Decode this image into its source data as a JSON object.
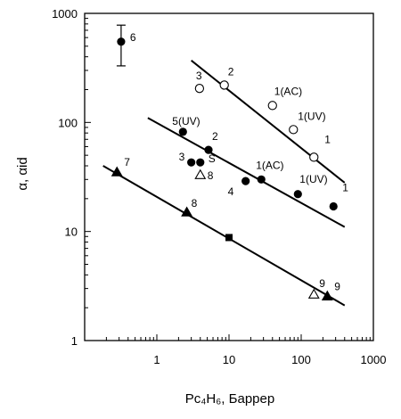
{
  "chart_data": {
    "type": "scatter",
    "title": "",
    "xlabel": "Pc₄H₆, Баррер",
    "ylabel": "α, αid",
    "xscale": "log",
    "yscale": "log",
    "xlim": [
      0.1,
      1000
    ],
    "ylim": [
      1,
      1000
    ],
    "xticks": [
      "1",
      "10",
      "100",
      "1000"
    ],
    "yticks": [
      "1",
      "10",
      "100",
      "1000"
    ],
    "grid": false,
    "legend": "none",
    "series": [
      {
        "marker": "filled-circle",
        "points": [
          {
            "x": 0.32,
            "y": 550,
            "label": "6",
            "yerr": [
              330,
              780
            ]
          },
          {
            "x": 2.3,
            "y": 82,
            "label": "5(UV)"
          },
          {
            "x": 5.2,
            "y": 56,
            "label": "2"
          },
          {
            "x": 3.0,
            "y": 43,
            "label": "3"
          },
          {
            "x": 4.0,
            "y": 43,
            "label": "S"
          },
          {
            "x": 17,
            "y": 29,
            "label": "4"
          },
          {
            "x": 28,
            "y": 30,
            "label": "1(AC)"
          },
          {
            "x": 90,
            "y": 22,
            "label": "1(UV)"
          },
          {
            "x": 280,
            "y": 17,
            "label": "1"
          }
        ]
      },
      {
        "marker": "open-circle",
        "points": [
          {
            "x": 3.9,
            "y": 205,
            "label": "3"
          },
          {
            "x": 8.6,
            "y": 220,
            "label": "2"
          },
          {
            "x": 40,
            "y": 143,
            "label": "1(AC)"
          },
          {
            "x": 78,
            "y": 86,
            "label": "1(UV)"
          },
          {
            "x": 150,
            "y": 48,
            "label": "1"
          }
        ]
      },
      {
        "marker": "filled-triangle",
        "points": [
          {
            "x": 0.28,
            "y": 35,
            "label": "7"
          },
          {
            "x": 2.6,
            "y": 15,
            "label": "8"
          },
          {
            "x": 230,
            "y": 2.55,
            "label": "9"
          }
        ]
      },
      {
        "marker": "open-triangle",
        "points": [
          {
            "x": 4.0,
            "y": 33,
            "label": "8"
          },
          {
            "x": 150,
            "y": 2.65,
            "label": "9"
          }
        ]
      },
      {
        "marker": "filled-square",
        "points": [
          {
            "x": 10,
            "y": 8.8
          }
        ]
      }
    ],
    "fit_lines": [
      {
        "from": [
          3.0,
          370
        ],
        "to": [
          400,
          28
        ]
      },
      {
        "from": [
          0.75,
          110
        ],
        "to": [
          400,
          11
        ]
      },
      {
        "from": [
          0.18,
          40
        ],
        "to": [
          400,
          2.1
        ]
      }
    ]
  }
}
